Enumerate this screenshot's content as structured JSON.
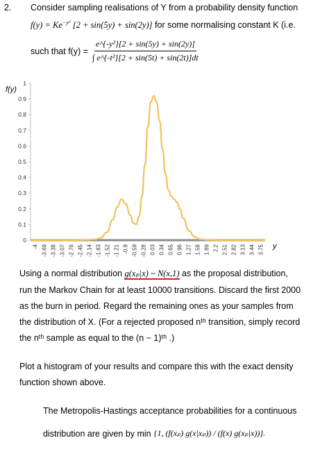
{
  "question": {
    "number": "2.",
    "line1": "Consider sampling realisations of Y from a probability density function",
    "formula_lhs": "f(y) = Ke",
    "formula_exp": "−y²",
    "formula_rhs": "[2 + sin(5y) + sin(2y)]",
    "line2_tail": "for some normalising constant K (i.e.",
    "such_that": "such that f(y) =",
    "frac_num": "e^{-y²}[2 + sin(5y) + sin(2y)]",
    "frac_den": "∫ e^{-t²}[2 + sin(5t) + sin(2t)]dt"
  },
  "chart_data": {
    "type": "line",
    "ylabel": "f(y)",
    "xlabel": "y",
    "ylim": [
      0,
      1
    ],
    "yticks": [
      "0",
      "0.1",
      "0.2",
      "0.3",
      "0.4",
      "0.5",
      "0.6",
      "0.7",
      "0.8",
      "0.9",
      "1"
    ],
    "xticks": [
      "-4",
      "-3.69",
      "-3.38",
      "-3.07",
      "-2.76",
      "-2.45",
      "-2.14",
      "-1.83",
      "-1.52",
      "-1.21",
      "-0.9",
      "-0.59",
      "-0.28",
      "0.03",
      "0.34",
      "0.65",
      "0.96",
      "1.27",
      "1.58",
      "1.89",
      "2.2",
      "2.51",
      "2.82",
      "3.13",
      "3.44",
      "3.75"
    ],
    "series": [
      {
        "color": "#f2c05a",
        "x": [
          -4,
          -3.5,
          -3,
          -2.5,
          -2,
          -1.8,
          -1.6,
          -1.4,
          -1.2,
          -1.05,
          -0.9,
          -0.75,
          -0.6,
          -0.5,
          -0.4,
          -0.3,
          -0.2,
          -0.1,
          0,
          0.1,
          0.2,
          0.3,
          0.4,
          0.5,
          0.6,
          0.7,
          0.8,
          0.9,
          1.0,
          1.1,
          1.2,
          1.4,
          1.6,
          1.8,
          2,
          2.5,
          3,
          3.5,
          4
        ],
        "y": [
          0,
          0,
          0,
          0,
          0.002,
          0.005,
          0.015,
          0.05,
          0.13,
          0.21,
          0.26,
          0.23,
          0.16,
          0.11,
          0.1,
          0.15,
          0.28,
          0.48,
          0.72,
          0.88,
          0.92,
          0.88,
          0.76,
          0.58,
          0.42,
          0.32,
          0.28,
          0.26,
          0.24,
          0.2,
          0.14,
          0.06,
          0.02,
          0.005,
          0.002,
          0,
          0,
          0,
          0
        ]
      }
    ]
  },
  "paragraph1": {
    "l1a": "Using a normal distribution",
    "l1b": "g(xₚ|x) ~ N(x,1)",
    "l1c": "as the proposal distribution,",
    "l2": "run the Markov Chain for at least 10000 transitions. Discard the first 2000",
    "l3": "as the burn in period. Regard the remaining ones as your samples from",
    "l4": "the distribution of X. (For a rejected proposed nᵗʰ transition, simply record",
    "l5": "the nᵗʰ sample as equal to the (n − 1)ᵗʰ .)"
  },
  "paragraph2": {
    "l1": "Plot a histogram of your results and compare this with the exact density",
    "l2": "function shown above."
  },
  "paragraph3": {
    "l1": "The Metropolis-Hastings acceptance probabilities for a continuous",
    "l2": "distribution are given by min",
    "formula": "{1, (f(xₚ) g(x|xₚ)) / (f(x) g(xₚ|x))}."
  }
}
